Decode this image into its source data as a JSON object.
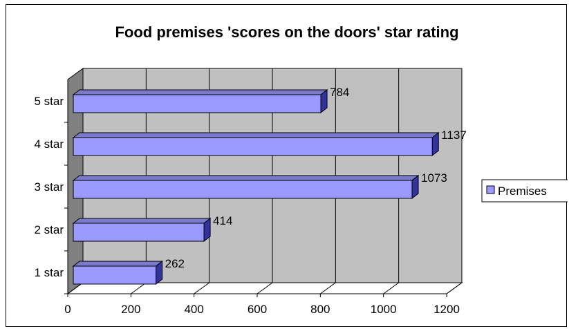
{
  "chart_data": {
    "type": "bar",
    "orientation": "horizontal",
    "title": "Food premises 'scores on the doors' star rating",
    "categories": [
      "1 star",
      "2 star",
      "3 star",
      "4 star",
      "5 star"
    ],
    "series": [
      {
        "name": "Premises",
        "values": [
          262,
          414,
          1073,
          1137,
          784
        ],
        "color": "#9999ff"
      }
    ],
    "data_labels": [
      "262",
      "414",
      "1073",
      "1137",
      "784"
    ],
    "x_ticks": [
      "0",
      "200",
      "400",
      "600",
      "800",
      "1000",
      "1200"
    ],
    "xlim": [
      0,
      1200
    ],
    "grid": true,
    "style": "3d",
    "legend_position": "right",
    "colors": {
      "plot_back": "#c0c0c0",
      "plot_side": "#808080",
      "bar_front": "#9999ff",
      "bar_top": "#7a7acc",
      "bar_side": "#333399"
    }
  }
}
